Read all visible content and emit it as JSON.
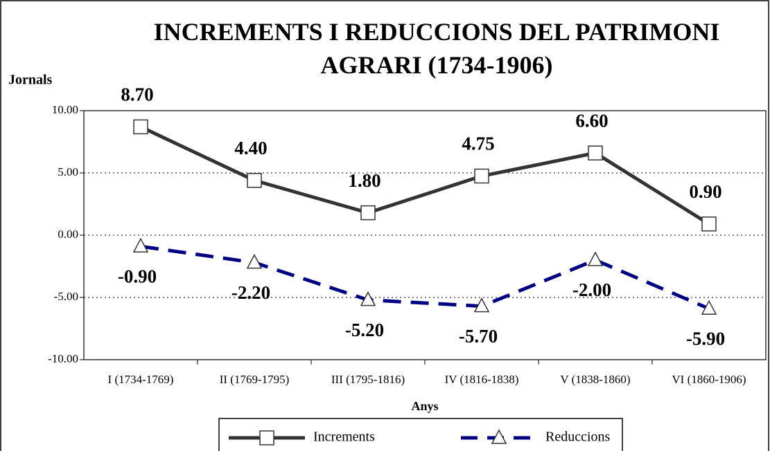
{
  "chart_data": {
    "type": "line",
    "title": "INCREMENTS I REDUCCIONS DEL PATRIMONI AGRARI (1734-1906)",
    "y_label": "Jornals",
    "x_label": "Anys",
    "categories": [
      "I (1734-1769)",
      "II (1769-1795)",
      "III (1795-1816)",
      "IV (1816-1838)",
      "V (1838-1860)",
      "VI (1860-1906)"
    ],
    "series": [
      {
        "name": "Increments",
        "color": "#333333",
        "marker": "square",
        "dashed": false,
        "values": [
          8.7,
          4.4,
          1.8,
          4.75,
          6.6,
          0.9
        ],
        "value_labels": [
          "8.70",
          "4.40",
          "1.80",
          "4.75",
          "6.60",
          "0.90"
        ]
      },
      {
        "name": "Reduccions",
        "color": "#000080",
        "marker": "triangle",
        "dashed": true,
        "values": [
          -0.9,
          -2.2,
          -5.2,
          -5.7,
          -2.0,
          -5.9
        ],
        "value_labels": [
          "-0.90",
          "-2.20",
          "-5.20",
          "-5.70",
          "-2.00",
          "-5.90"
        ]
      }
    ],
    "ylim": [
      -10,
      10
    ],
    "yticks": [
      {
        "value": -10,
        "label": "-10.00"
      },
      {
        "value": -5,
        "label": "-5.00"
      },
      {
        "value": 0,
        "label": "0.00"
      },
      {
        "value": 5,
        "label": "5.00"
      },
      {
        "value": 10,
        "label": "10.00"
      }
    ],
    "grid": true,
    "legend": "bottom"
  }
}
